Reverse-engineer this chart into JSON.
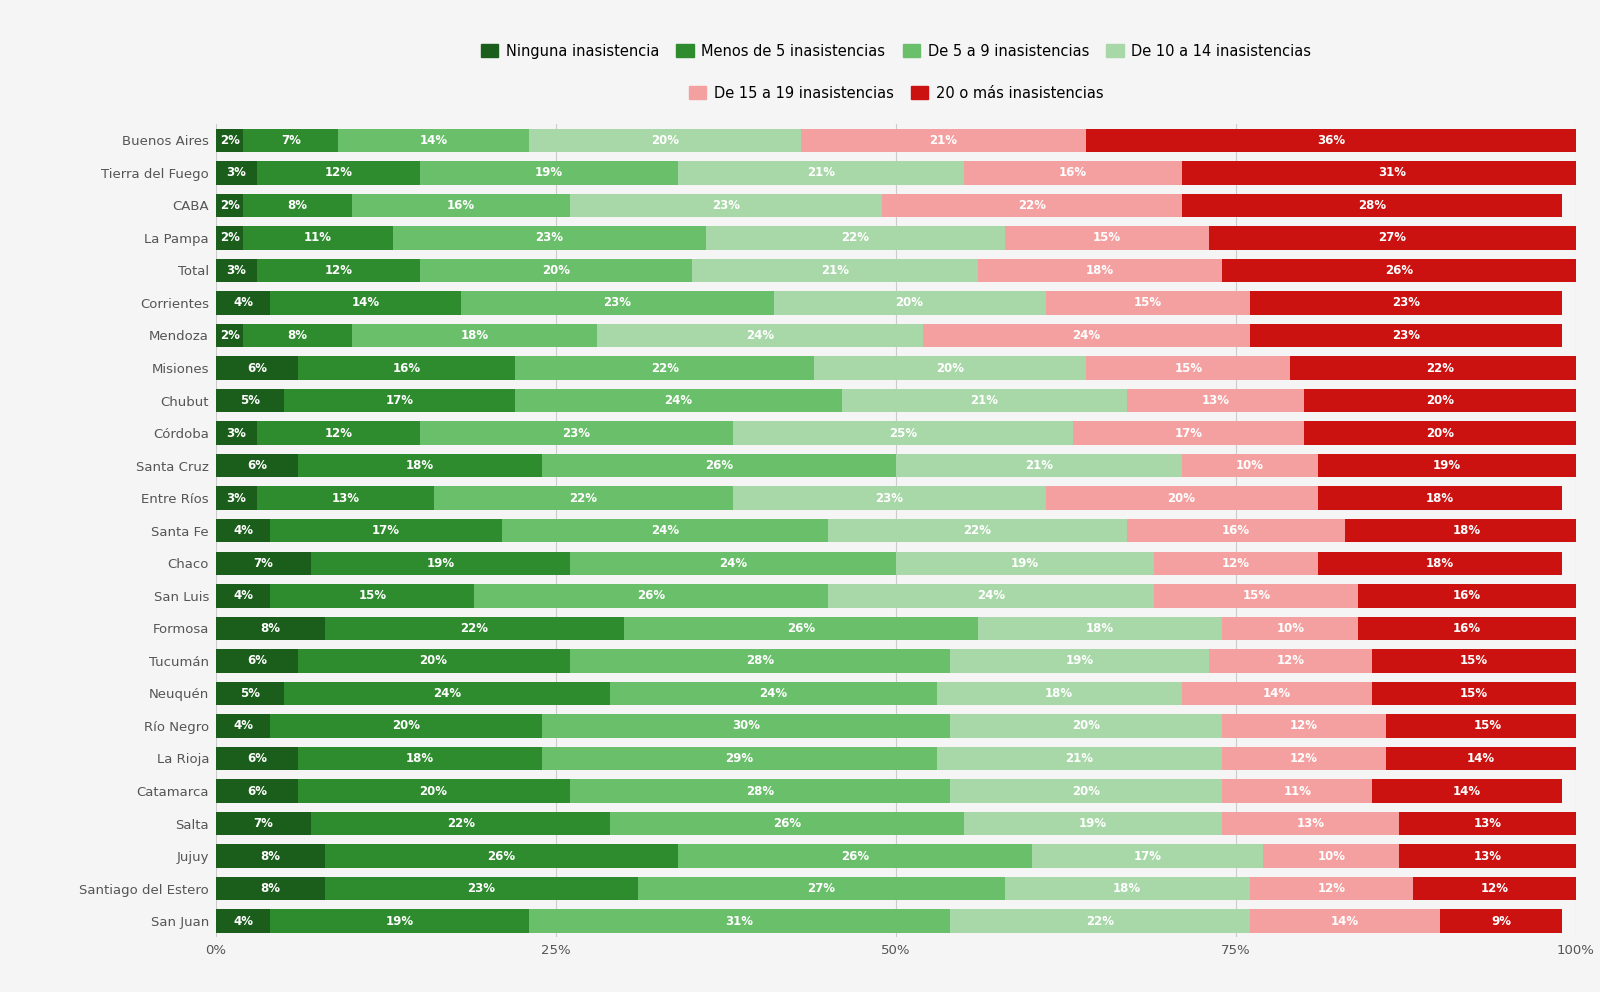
{
  "categories": [
    "Buenos Aires",
    "Tierra del Fuego",
    "CABA",
    "La Pampa",
    "Total",
    "Corrientes",
    "Mendoza",
    "Misiones",
    "Chubut",
    "Córdoba",
    "Santa Cruz",
    "Entre Ríos",
    "Santa Fe",
    "Chaco",
    "San Luis",
    "Formosa",
    "Tucumán",
    "Neuquén",
    "Río Negro",
    "La Rioja",
    "Catamarca",
    "Salta",
    "Jujuy",
    "Santiago del Estero",
    "San Juan"
  ],
  "series": {
    "Ninguna inasistencia": [
      2,
      3,
      2,
      2,
      3,
      4,
      2,
      6,
      5,
      3,
      6,
      3,
      4,
      7,
      4,
      8,
      6,
      5,
      4,
      6,
      6,
      7,
      8,
      8,
      4
    ],
    "Menos de 5 inasistencias": [
      7,
      12,
      8,
      11,
      12,
      14,
      8,
      16,
      17,
      12,
      18,
      13,
      17,
      19,
      15,
      22,
      20,
      24,
      20,
      18,
      20,
      22,
      26,
      23,
      19
    ],
    "De 5 a 9 inasistencias": [
      14,
      19,
      16,
      23,
      20,
      23,
      18,
      22,
      24,
      23,
      26,
      22,
      24,
      24,
      26,
      26,
      28,
      24,
      30,
      29,
      28,
      26,
      26,
      27,
      31
    ],
    "De 10 a 14 inasistencias": [
      20,
      21,
      23,
      22,
      21,
      20,
      24,
      20,
      21,
      25,
      21,
      23,
      22,
      19,
      24,
      18,
      19,
      18,
      20,
      21,
      20,
      19,
      17,
      18,
      22
    ],
    "De 15 a 19 inasistencias": [
      21,
      16,
      22,
      15,
      18,
      15,
      24,
      15,
      13,
      17,
      10,
      20,
      16,
      12,
      15,
      10,
      12,
      14,
      12,
      12,
      11,
      13,
      10,
      12,
      14
    ],
    "20 o más inasistencias": [
      36,
      31,
      28,
      27,
      26,
      23,
      23,
      22,
      20,
      20,
      19,
      18,
      18,
      18,
      16,
      16,
      15,
      15,
      15,
      14,
      14,
      13,
      13,
      12,
      9
    ]
  },
  "colors": {
    "Ninguna inasistencia": "#1b5e1b",
    "Menos de 5 inasistencias": "#2e8b2e",
    "De 5 a 9 inasistencias": "#6abf6a",
    "De 10 a 14 inasistencias": "#a8d8a8",
    "De 15 a 19 inasistencias": "#f5a0a0",
    "20 o más inasistencias": "#cc1111"
  },
  "legend_labels": [
    "Ninguna inasistencia",
    "Menos de 5 inasistencias",
    "De 5 a 9 inasistencias",
    "De 10 a 14 inasistencias",
    "De 15 a 19 inasistencias",
    "20 o más inasistencias"
  ],
  "bg_color": "#f5f5f5",
  "bar_height": 0.72,
  "fontsize_bar_labels": 8.5,
  "fontsize_ticks": 9.5,
  "fontsize_legend": 10.5
}
